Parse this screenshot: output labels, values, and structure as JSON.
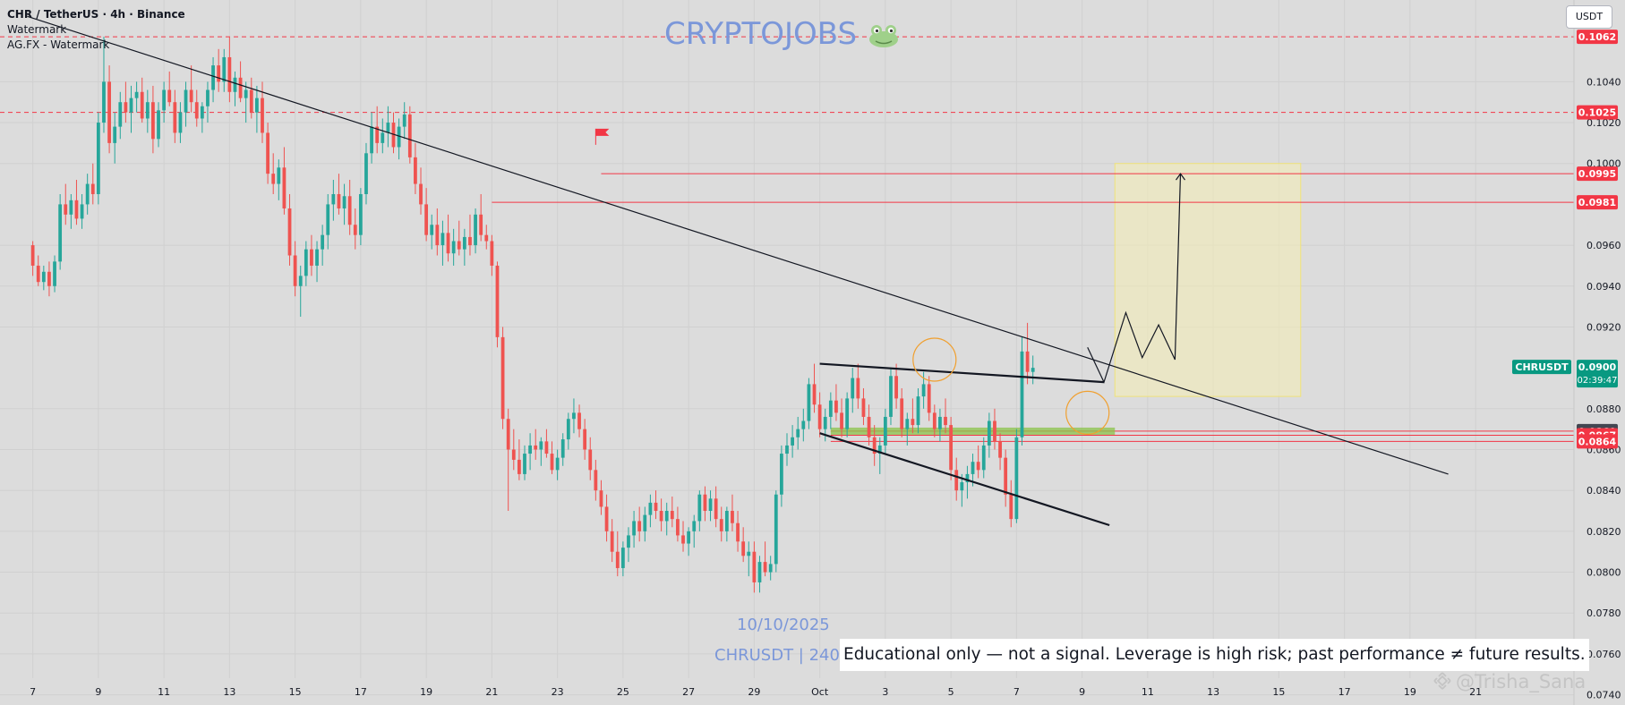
{
  "header": {
    "symbol_line": "CHR / TetherUS · 4h · Binance",
    "indicator_1": "Watermark",
    "indicator_2": "AG.FX - Watermark"
  },
  "watermark_title": "CRYPTOJOBS",
  "currency_button": "USDT",
  "date_watermark": "10/10/2025",
  "symbol_watermark": "CHRUSDT | 240/",
  "disclaimer": "Educational only — not a signal. Leverage is high risk; past performance ≠ future results.",
  "author": "@Trisha_Sana",
  "colors": {
    "background": "#dcdcdc",
    "up": "#26a69a",
    "down": "#ef5350",
    "level_red": "#f23645",
    "target_box": "#f6efb4",
    "support_zone": "#8bc34a",
    "current_price_tag": "#089981",
    "dark_tag": "#434651"
  },
  "chart_data": {
    "type": "candlestick",
    "symbol": "CHRUSDT",
    "timeframe": "4h",
    "exchange": "Binance",
    "quote": "USDT",
    "y_axis": {
      "range": [
        0.0735,
        0.108
      ],
      "ticks": [
        "0.1040",
        "0.1020",
        "0.1000",
        "0.0960",
        "0.0940",
        "0.0920",
        "0.0880",
        "0.0860",
        "0.0840",
        "0.0820",
        "0.0800",
        "0.0780",
        "0.0760",
        "0.0740"
      ]
    },
    "x_axis": {
      "tick_labels": [
        "7",
        "9",
        "11",
        "13",
        "15",
        "17",
        "19",
        "21",
        "23",
        "25",
        "27",
        "29",
        "Oct",
        "3",
        "5",
        "7",
        "9",
        "11",
        "13",
        "15",
        "17",
        "19",
        "21"
      ],
      "tick_index": [
        0,
        12,
        24,
        36,
        48,
        60,
        72,
        84,
        96,
        108,
        120,
        132,
        144,
        156,
        168,
        180,
        192,
        204,
        216,
        228,
        240,
        252,
        264
      ],
      "index_range": [
        -6,
        282
      ]
    },
    "price_levels": [
      {
        "label": "0.1062",
        "value": 0.1062,
        "style": "dashed",
        "color": "#f23645"
      },
      {
        "label": "0.1025",
        "value": 0.1025,
        "style": "dashed",
        "color": "#f23645"
      },
      {
        "label": "0.0995",
        "value": 0.0995,
        "style": "solid",
        "color": "#f23645",
        "from_index": 104
      },
      {
        "label": "0.0981",
        "value": 0.0981,
        "style": "solid",
        "color": "#f23645",
        "from_index": 84
      },
      {
        "label": "0.0869",
        "value": 0.0869,
        "style": "solid",
        "color": "#f23645",
        "from_index": 146,
        "tag": "dark"
      },
      {
        "label": "0.0867",
        "value": 0.0867,
        "style": "solid",
        "color": "#f23645",
        "from_index": 146
      },
      {
        "label": "0.0864",
        "value": 0.0864,
        "style": "solid",
        "color": "#f23645",
        "from_index": 146
      }
    ],
    "current_price": {
      "symbol": "CHRUSDT",
      "price": "0.0900",
      "countdown": "02:39:47",
      "value": 0.09
    },
    "candles": [
      [
        0.096,
        0.0962,
        0.0945,
        0.095
      ],
      [
        0.095,
        0.0955,
        0.094,
        0.0942
      ],
      [
        0.0942,
        0.095,
        0.0938,
        0.0947
      ],
      [
        0.0947,
        0.0952,
        0.0935,
        0.094
      ],
      [
        0.094,
        0.0955,
        0.0937,
        0.0952
      ],
      [
        0.0952,
        0.0985,
        0.0948,
        0.098
      ],
      [
        0.098,
        0.099,
        0.097,
        0.0975
      ],
      [
        0.0975,
        0.0985,
        0.0968,
        0.0982
      ],
      [
        0.0982,
        0.0992,
        0.097,
        0.0973
      ],
      [
        0.0973,
        0.0985,
        0.0968,
        0.098
      ],
      [
        0.098,
        0.0995,
        0.0975,
        0.099
      ],
      [
        0.099,
        0.1,
        0.098,
        0.0985
      ],
      [
        0.0985,
        0.1025,
        0.098,
        0.102
      ],
      [
        0.102,
        0.1062,
        0.1015,
        0.104
      ],
      [
        0.104,
        0.1048,
        0.1005,
        0.101
      ],
      [
        0.101,
        0.1025,
        0.1,
        0.1018
      ],
      [
        0.1018,
        0.1035,
        0.1012,
        0.103
      ],
      [
        0.103,
        0.104,
        0.102,
        0.1025
      ],
      [
        0.1025,
        0.1038,
        0.1015,
        0.1032
      ],
      [
        0.1032,
        0.104,
        0.1025,
        0.1035
      ],
      [
        0.1035,
        0.1042,
        0.102,
        0.1022
      ],
      [
        0.1022,
        0.1036,
        0.1015,
        0.103
      ],
      [
        0.103,
        0.1038,
        0.1005,
        0.1012
      ],
      [
        0.1012,
        0.103,
        0.1008,
        0.1026
      ],
      [
        0.1026,
        0.104,
        0.102,
        0.1036
      ],
      [
        0.1036,
        0.1045,
        0.1028,
        0.103
      ],
      [
        0.103,
        0.1036,
        0.101,
        0.1015
      ],
      [
        0.1015,
        0.103,
        0.101,
        0.1025
      ],
      [
        0.1025,
        0.104,
        0.1018,
        0.1036
      ],
      [
        0.1036,
        0.1048,
        0.1025,
        0.103
      ],
      [
        0.103,
        0.1036,
        0.1018,
        0.1022
      ],
      [
        0.1022,
        0.103,
        0.1015,
        0.1028
      ],
      [
        0.1028,
        0.104,
        0.102,
        0.1036
      ],
      [
        0.1036,
        0.1052,
        0.103,
        0.1048
      ],
      [
        0.1048,
        0.1056,
        0.1035,
        0.104
      ],
      [
        0.104,
        0.1056,
        0.1035,
        0.1052
      ],
      [
        0.1052,
        0.1062,
        0.103,
        0.1035
      ],
      [
        0.1035,
        0.1045,
        0.1028,
        0.1042
      ],
      [
        0.1042,
        0.105,
        0.103,
        0.1032
      ],
      [
        0.1032,
        0.104,
        0.102,
        0.1036
      ],
      [
        0.1036,
        0.1042,
        0.1022,
        0.1025
      ],
      [
        0.1025,
        0.1038,
        0.1015,
        0.1032
      ],
      [
        0.1032,
        0.104,
        0.101,
        0.1015
      ],
      [
        0.1015,
        0.102,
        0.099,
        0.0995
      ],
      [
        0.0995,
        0.1005,
        0.0985,
        0.099
      ],
      [
        0.099,
        0.1002,
        0.0982,
        0.0998
      ],
      [
        0.0998,
        0.1008,
        0.0975,
        0.0978
      ],
      [
        0.0978,
        0.0985,
        0.095,
        0.0955
      ],
      [
        0.0955,
        0.0962,
        0.0935,
        0.094
      ],
      [
        0.094,
        0.095,
        0.0925,
        0.0945
      ],
      [
        0.0945,
        0.0962,
        0.094,
        0.0958
      ],
      [
        0.0958,
        0.0965,
        0.0945,
        0.095
      ],
      [
        0.095,
        0.0962,
        0.0942,
        0.0958
      ],
      [
        0.0958,
        0.097,
        0.095,
        0.0965
      ],
      [
        0.0965,
        0.0985,
        0.0958,
        0.098
      ],
      [
        0.098,
        0.0992,
        0.0972,
        0.0985
      ],
      [
        0.0985,
        0.0995,
        0.0975,
        0.0978
      ],
      [
        0.0978,
        0.099,
        0.097,
        0.0984
      ],
      [
        0.0984,
        0.0992,
        0.0965,
        0.097
      ],
      [
        0.097,
        0.0978,
        0.0958,
        0.0965
      ],
      [
        0.0965,
        0.0988,
        0.096,
        0.0985
      ],
      [
        0.0985,
        0.101,
        0.098,
        0.1005
      ],
      [
        0.1005,
        0.1025,
        0.1,
        0.1018
      ],
      [
        0.1018,
        0.1028,
        0.1005,
        0.101
      ],
      [
        0.101,
        0.1022,
        0.1005,
        0.1015
      ],
      [
        0.1015,
        0.1028,
        0.1008,
        0.102
      ],
      [
        0.102,
        0.1025,
        0.1005,
        0.1008
      ],
      [
        0.1008,
        0.1022,
        0.1002,
        0.1018
      ],
      [
        0.1018,
        0.103,
        0.1012,
        0.1024
      ],
      [
        0.1024,
        0.1028,
        0.1,
        0.1003
      ],
      [
        0.1003,
        0.101,
        0.0985,
        0.099
      ],
      [
        0.099,
        0.0998,
        0.0975,
        0.098
      ],
      [
        0.098,
        0.0988,
        0.0962,
        0.0965
      ],
      [
        0.0965,
        0.0975,
        0.0958,
        0.097
      ],
      [
        0.097,
        0.0978,
        0.0955,
        0.096
      ],
      [
        0.096,
        0.0972,
        0.095,
        0.0966
      ],
      [
        0.0966,
        0.0975,
        0.0952,
        0.0956
      ],
      [
        0.0956,
        0.0968,
        0.095,
        0.0962
      ],
      [
        0.0962,
        0.0972,
        0.0955,
        0.0958
      ],
      [
        0.0958,
        0.0968,
        0.095,
        0.0964
      ],
      [
        0.0964,
        0.0975,
        0.0955,
        0.096
      ],
      [
        0.096,
        0.0978,
        0.0956,
        0.0975
      ],
      [
        0.0975,
        0.0985,
        0.0962,
        0.0965
      ],
      [
        0.0965,
        0.097,
        0.0958,
        0.0962
      ],
      [
        0.0962,
        0.0965,
        0.0945,
        0.095
      ],
      [
        0.095,
        0.0952,
        0.091,
        0.0915
      ],
      [
        0.0915,
        0.092,
        0.087,
        0.0875
      ],
      [
        0.0875,
        0.088,
        0.083,
        0.086
      ],
      [
        0.086,
        0.087,
        0.085,
        0.0855
      ],
      [
        0.0855,
        0.0865,
        0.0845,
        0.0848
      ],
      [
        0.0848,
        0.0862,
        0.0845,
        0.0858
      ],
      [
        0.0858,
        0.0868,
        0.085,
        0.0862
      ],
      [
        0.0862,
        0.087,
        0.0855,
        0.086
      ],
      [
        0.086,
        0.0866,
        0.0852,
        0.0864
      ],
      [
        0.0864,
        0.087,
        0.0856,
        0.0858
      ],
      [
        0.0858,
        0.0864,
        0.0848,
        0.085
      ],
      [
        0.085,
        0.086,
        0.0845,
        0.0856
      ],
      [
        0.0856,
        0.0868,
        0.0852,
        0.0865
      ],
      [
        0.0865,
        0.0878,
        0.086,
        0.0875
      ],
      [
        0.0875,
        0.0885,
        0.0868,
        0.0878
      ],
      [
        0.0878,
        0.0882,
        0.0866,
        0.087
      ],
      [
        0.087,
        0.0875,
        0.0855,
        0.086
      ],
      [
        0.086,
        0.0866,
        0.0845,
        0.085
      ],
      [
        0.085,
        0.0855,
        0.0835,
        0.084
      ],
      [
        0.084,
        0.0845,
        0.0828,
        0.0832
      ],
      [
        0.0832,
        0.0838,
        0.0815,
        0.082
      ],
      [
        0.082,
        0.0826,
        0.0805,
        0.081
      ],
      [
        0.081,
        0.082,
        0.0798,
        0.0802
      ],
      [
        0.0802,
        0.0815,
        0.0798,
        0.0812
      ],
      [
        0.0812,
        0.0822,
        0.0805,
        0.0818
      ],
      [
        0.0818,
        0.083,
        0.0812,
        0.0825
      ],
      [
        0.0825,
        0.0832,
        0.0815,
        0.082
      ],
      [
        0.082,
        0.0832,
        0.0815,
        0.0828
      ],
      [
        0.0828,
        0.0838,
        0.0822,
        0.0834
      ],
      [
        0.0834,
        0.084,
        0.0826,
        0.083
      ],
      [
        0.083,
        0.0836,
        0.082,
        0.0825
      ],
      [
        0.0825,
        0.0834,
        0.0818,
        0.083
      ],
      [
        0.083,
        0.0837,
        0.0822,
        0.0826
      ],
      [
        0.0826,
        0.0832,
        0.0815,
        0.0818
      ],
      [
        0.0818,
        0.0825,
        0.081,
        0.0814
      ],
      [
        0.0814,
        0.0822,
        0.0808,
        0.082
      ],
      [
        0.082,
        0.0828,
        0.0812,
        0.0825
      ],
      [
        0.0825,
        0.084,
        0.082,
        0.0838
      ],
      [
        0.0838,
        0.0842,
        0.0825,
        0.083
      ],
      [
        0.083,
        0.084,
        0.0825,
        0.0836
      ],
      [
        0.0836,
        0.0842,
        0.0822,
        0.0826
      ],
      [
        0.0826,
        0.0832,
        0.0815,
        0.082
      ],
      [
        0.082,
        0.0832,
        0.0815,
        0.083
      ],
      [
        0.083,
        0.0838,
        0.082,
        0.0824
      ],
      [
        0.0824,
        0.083,
        0.081,
        0.0815
      ],
      [
        0.0815,
        0.0822,
        0.0805,
        0.0808
      ],
      [
        0.0808,
        0.0815,
        0.0798,
        0.081
      ],
      [
        0.081,
        0.0815,
        0.079,
        0.0795
      ],
      [
        0.0795,
        0.0808,
        0.079,
        0.0805
      ],
      [
        0.0805,
        0.0815,
        0.0798,
        0.08
      ],
      [
        0.08,
        0.0808,
        0.0796,
        0.0804
      ],
      [
        0.0804,
        0.084,
        0.08,
        0.0838
      ],
      [
        0.0838,
        0.0862,
        0.0832,
        0.0858
      ],
      [
        0.0858,
        0.0868,
        0.0852,
        0.0862
      ],
      [
        0.0862,
        0.0872,
        0.0856,
        0.0866
      ],
      [
        0.0866,
        0.0876,
        0.086,
        0.087
      ],
      [
        0.087,
        0.088,
        0.0864,
        0.0874
      ],
      [
        0.0874,
        0.0895,
        0.087,
        0.0892
      ],
      [
        0.0892,
        0.0902,
        0.0878,
        0.0882
      ],
      [
        0.0882,
        0.0888,
        0.0866,
        0.087
      ],
      [
        0.087,
        0.088,
        0.0864,
        0.0876
      ],
      [
        0.0876,
        0.0888,
        0.087,
        0.0884
      ],
      [
        0.0884,
        0.0892,
        0.0874,
        0.0878
      ],
      [
        0.0878,
        0.0885,
        0.0866,
        0.087
      ],
      [
        0.087,
        0.0888,
        0.0866,
        0.0885
      ],
      [
        0.0885,
        0.09,
        0.0878,
        0.0895
      ],
      [
        0.0895,
        0.0902,
        0.088,
        0.0885
      ],
      [
        0.0885,
        0.089,
        0.0872,
        0.0876
      ],
      [
        0.0876,
        0.0882,
        0.0862,
        0.0866
      ],
      [
        0.0866,
        0.0872,
        0.0852,
        0.0858
      ],
      [
        0.0858,
        0.0866,
        0.0848,
        0.0862
      ],
      [
        0.0862,
        0.088,
        0.0858,
        0.0876
      ],
      [
        0.0876,
        0.09,
        0.0872,
        0.0896
      ],
      [
        0.0896,
        0.0902,
        0.088,
        0.0885
      ],
      [
        0.0885,
        0.089,
        0.0866,
        0.087
      ],
      [
        0.087,
        0.0878,
        0.0862,
        0.0875
      ],
      [
        0.0875,
        0.0885,
        0.0868,
        0.0872
      ],
      [
        0.0872,
        0.089,
        0.0868,
        0.0886
      ],
      [
        0.0886,
        0.0898,
        0.088,
        0.0892
      ],
      [
        0.0892,
        0.0896,
        0.0874,
        0.0878
      ],
      [
        0.0878,
        0.0882,
        0.0866,
        0.087
      ],
      [
        0.087,
        0.088,
        0.0864,
        0.0876
      ],
      [
        0.0876,
        0.0885,
        0.0868,
        0.0872
      ],
      [
        0.0872,
        0.0876,
        0.0845,
        0.085
      ],
      [
        0.085,
        0.0856,
        0.0835,
        0.084
      ],
      [
        0.084,
        0.0848,
        0.0832,
        0.0844
      ],
      [
        0.0844,
        0.0852,
        0.0836,
        0.0848
      ],
      [
        0.0848,
        0.0858,
        0.0842,
        0.0854
      ],
      [
        0.0854,
        0.0862,
        0.0846,
        0.085
      ],
      [
        0.085,
        0.0866,
        0.0846,
        0.0862
      ],
      [
        0.0862,
        0.0878,
        0.0856,
        0.0874
      ],
      [
        0.0874,
        0.088,
        0.086,
        0.0864
      ],
      [
        0.0864,
        0.0868,
        0.085,
        0.0856
      ],
      [
        0.0856,
        0.086,
        0.0832,
        0.0838
      ],
      [
        0.0838,
        0.0845,
        0.0822,
        0.0826
      ],
      [
        0.0826,
        0.087,
        0.0824,
        0.0866
      ],
      [
        0.0866,
        0.0915,
        0.0862,
        0.0908
      ],
      [
        0.0908,
        0.0922,
        0.0892,
        0.0898
      ],
      [
        0.0898,
        0.0906,
        0.0892,
        0.09
      ]
    ],
    "annotations": {
      "descending_trendline": {
        "from": [
          -1,
          0.1072
        ],
        "to": [
          259,
          0.0848
        ]
      },
      "wedge_top": {
        "from": [
          144,
          0.0902
        ],
        "to": [
          196,
          0.0893
        ]
      },
      "wedge_bottom": {
        "from": [
          144,
          0.0868
        ],
        "to": [
          197,
          0.0823
        ]
      },
      "support_zone": {
        "from_index": 146,
        "to_index": 198,
        "top": 0.0869,
        "bottom": 0.0866
      },
      "target_box": {
        "from_index": 198,
        "to_index": 232,
        "top": 0.1,
        "bottom": 0.0886
      },
      "projected_path": [
        [
          193,
          0.091
        ],
        [
          196,
          0.0893
        ],
        [
          200,
          0.0927
        ],
        [
          203,
          0.0905
        ],
        [
          206,
          0.0921
        ],
        [
          209,
          0.0904
        ],
        [
          210,
          0.0995
        ]
      ],
      "circles": [
        {
          "index": 165,
          "value": 0.0904
        },
        {
          "index": 193,
          "value": 0.0878
        }
      ],
      "flag_marker": {
        "index": 103,
        "value": 0.101
      }
    }
  }
}
